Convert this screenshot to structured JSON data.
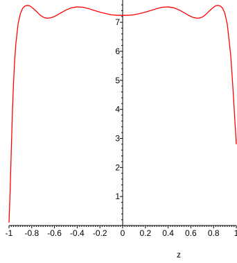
{
  "chart_data": {
    "type": "line",
    "title": "",
    "xlabel": "z",
    "ylabel": "",
    "xlim": [
      -1,
      1
    ],
    "ylim": [
      0,
      7.6
    ],
    "grid": false,
    "line_color": "#ff0000",
    "x_ticks": [
      {
        "value": -1,
        "label": "-1"
      },
      {
        "value": -0.8,
        "label": "-0.8"
      },
      {
        "value": -0.6,
        "label": "-0.6"
      },
      {
        "value": -0.4,
        "label": "-0.4"
      },
      {
        "value": -0.2,
        "label": "-0.2"
      },
      {
        "value": 0,
        "label": "0"
      },
      {
        "value": 0.2,
        "label": "0.2"
      },
      {
        "value": 0.4,
        "label": "0.4"
      },
      {
        "value": 0.6,
        "label": "0.6"
      },
      {
        "value": 0.8,
        "label": "0.8"
      },
      {
        "value": 1,
        "label": "1"
      }
    ],
    "y_ticks": [
      {
        "value": 1,
        "label": "1"
      },
      {
        "value": 2,
        "label": "2"
      },
      {
        "value": 3,
        "label": "3"
      },
      {
        "value": 4,
        "label": "4"
      },
      {
        "value": 5,
        "label": "5"
      },
      {
        "value": 6,
        "label": "6"
      },
      {
        "value": 7,
        "label": "7"
      }
    ],
    "series": [
      {
        "x": [
          -1.0,
          -0.99,
          -0.98,
          -0.97,
          -0.96,
          -0.95,
          -0.94,
          -0.92,
          -0.9,
          -0.88,
          -0.86,
          -0.84,
          -0.82,
          -0.8,
          -0.78,
          -0.76,
          -0.74,
          -0.72,
          -0.7,
          -0.68,
          -0.66,
          -0.64,
          -0.62,
          -0.6,
          -0.58,
          -0.55,
          -0.5,
          -0.45,
          -0.4,
          -0.35,
          -0.3,
          -0.25,
          -0.2,
          -0.15,
          -0.1,
          -0.05,
          0.0,
          0.05,
          0.1,
          0.15,
          0.2,
          0.25,
          0.3,
          0.35,
          0.4,
          0.45,
          0.5,
          0.55,
          0.58,
          0.6,
          0.62,
          0.64,
          0.66,
          0.68,
          0.7,
          0.72,
          0.74,
          0.76,
          0.78,
          0.8,
          0.82,
          0.84,
          0.86,
          0.88,
          0.9,
          0.92,
          0.94,
          0.95,
          0.96,
          0.97,
          0.98,
          0.99,
          1.0
        ],
        "y": [
          0.1,
          1.2,
          2.6,
          3.9,
          4.95,
          5.7,
          6.25,
          6.95,
          7.3,
          7.48,
          7.56,
          7.58,
          7.57,
          7.52,
          7.45,
          7.38,
          7.3,
          7.23,
          7.18,
          7.15,
          7.14,
          7.15,
          7.17,
          7.2,
          7.24,
          7.31,
          7.42,
          7.5,
          7.53,
          7.52,
          7.47,
          7.41,
          7.35,
          7.3,
          7.26,
          7.24,
          7.24,
          7.24,
          7.26,
          7.3,
          7.35,
          7.41,
          7.47,
          7.52,
          7.53,
          7.5,
          7.42,
          7.31,
          7.24,
          7.2,
          7.17,
          7.15,
          7.14,
          7.15,
          7.18,
          7.23,
          7.3,
          7.38,
          7.45,
          7.52,
          7.57,
          7.58,
          7.56,
          7.48,
          7.3,
          6.95,
          6.25,
          5.9,
          5.35,
          4.75,
          4.1,
          3.45,
          2.8
        ]
      }
    ]
  }
}
